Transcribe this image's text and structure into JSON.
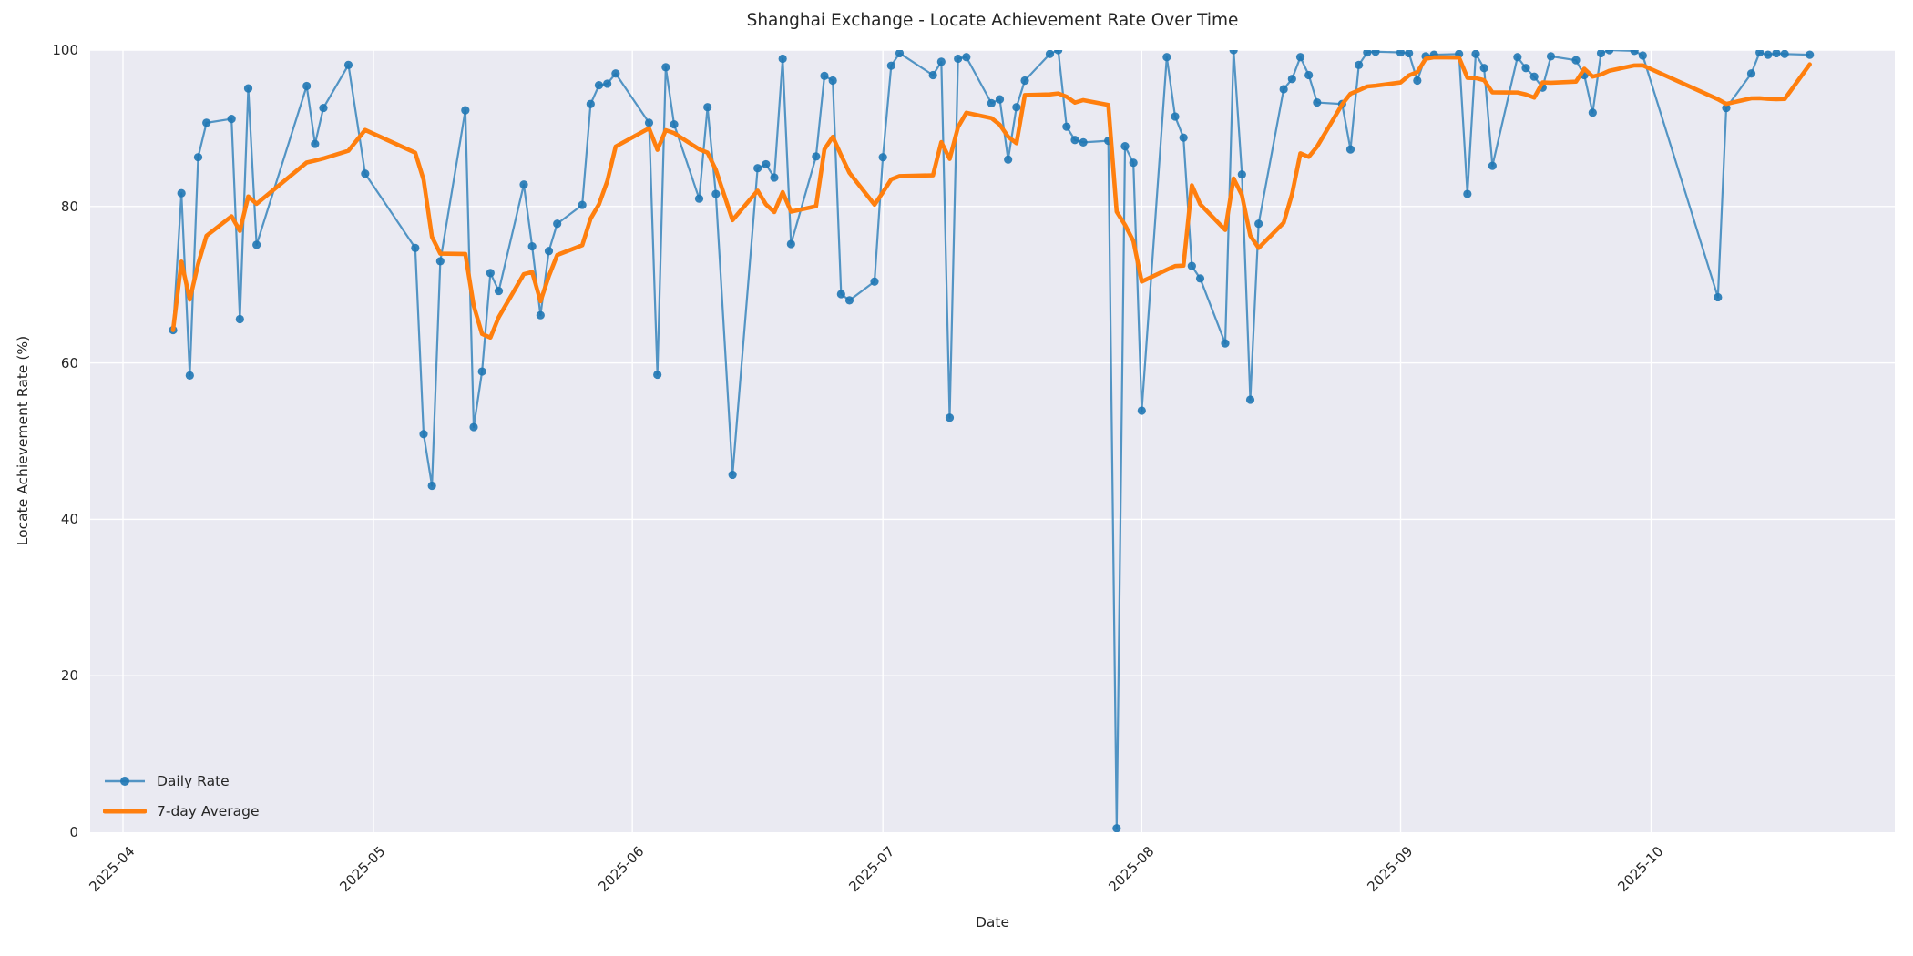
{
  "chart_data": {
    "type": "line",
    "title": "Shanghai Exchange - Locate Achievement Rate Over Time",
    "xlabel": "Date",
    "ylabel": "Locate Achievement Rate (%)",
    "ylim": [
      0,
      100
    ],
    "yticks": [
      0,
      20,
      40,
      60,
      80,
      100
    ],
    "xticks": [
      "2025-04",
      "2025-05",
      "2025-06",
      "2025-07",
      "2025-08",
      "2025-09",
      "2025-10"
    ],
    "grid": true,
    "legend_position": "lower left",
    "plot_background": "#eaeaf2",
    "grid_color": "#ffffff",
    "text_color": "#262626",
    "series": [
      {
        "name": "Daily Rate",
        "color": "#1f77b4",
        "line_alpha": 0.75,
        "line_width": 2.2,
        "marker": "o",
        "marker_radius": 4.6,
        "dates": [
          "2025-04-07",
          "2025-04-08",
          "2025-04-09",
          "2025-04-10",
          "2025-04-11",
          "2025-04-14",
          "2025-04-15",
          "2025-04-16",
          "2025-04-17",
          "2025-04-23",
          "2025-04-24",
          "2025-04-25",
          "2025-04-28",
          "2025-04-30",
          "2025-05-06",
          "2025-05-07",
          "2025-05-08",
          "2025-05-09",
          "2025-05-12",
          "2025-05-13",
          "2025-05-14",
          "2025-05-15",
          "2025-05-16",
          "2025-05-19",
          "2025-05-20",
          "2025-05-21",
          "2025-05-22",
          "2025-05-23",
          "2025-05-26",
          "2025-05-27",
          "2025-05-28",
          "2025-05-29",
          "2025-05-30",
          "2025-06-03",
          "2025-06-04",
          "2025-06-05",
          "2025-06-06",
          "2025-06-09",
          "2025-06-10",
          "2025-06-11",
          "2025-06-13",
          "2025-06-16",
          "2025-06-17",
          "2025-06-18",
          "2025-06-19",
          "2025-06-20",
          "2025-06-23",
          "2025-06-24",
          "2025-06-25",
          "2025-06-26",
          "2025-06-27",
          "2025-06-30",
          "2025-07-01",
          "2025-07-02",
          "2025-07-03",
          "2025-07-07",
          "2025-07-08",
          "2025-07-09",
          "2025-07-10",
          "2025-07-11",
          "2025-07-14",
          "2025-07-15",
          "2025-07-16",
          "2025-07-17",
          "2025-07-18",
          "2025-07-21",
          "2025-07-22",
          "2025-07-23",
          "2025-07-24",
          "2025-07-25",
          "2025-07-28",
          "2025-07-29",
          "2025-07-30",
          "2025-07-31",
          "2025-08-01",
          "2025-08-04",
          "2025-08-05",
          "2025-08-06",
          "2025-08-07",
          "2025-08-08",
          "2025-08-11",
          "2025-08-12",
          "2025-08-13",
          "2025-08-14",
          "2025-08-15",
          "2025-08-18",
          "2025-08-19",
          "2025-08-20",
          "2025-08-21",
          "2025-08-22",
          "2025-08-25",
          "2025-08-26",
          "2025-08-27",
          "2025-08-28",
          "2025-08-29",
          "2025-09-01",
          "2025-09-02",
          "2025-09-03",
          "2025-09-04",
          "2025-09-05",
          "2025-09-08",
          "2025-09-09",
          "2025-09-10",
          "2025-09-11",
          "2025-09-12",
          "2025-09-15",
          "2025-09-16",
          "2025-09-17",
          "2025-09-18",
          "2025-09-19",
          "2025-09-22",
          "2025-09-23",
          "2025-09-24",
          "2025-09-25",
          "2025-09-26",
          "2025-09-29",
          "2025-09-30",
          "2025-10-09",
          "2025-10-10",
          "2025-10-13",
          "2025-10-14",
          "2025-10-15",
          "2025-10-16",
          "2025-10-17",
          "2025-10-20"
        ],
        "values": [
          64.2,
          81.7,
          58.4,
          86.3,
          90.7,
          91.2,
          65.6,
          95.1,
          75.1,
          95.4,
          88.0,
          92.6,
          98.1,
          84.2,
          74.7,
          50.9,
          44.3,
          73.0,
          92.3,
          51.8,
          58.9,
          71.5,
          69.2,
          82.8,
          74.9,
          66.1,
          74.3,
          77.8,
          80.2,
          93.1,
          95.5,
          95.7,
          97.0,
          90.7,
          58.5,
          97.8,
          90.5,
          81.0,
          92.7,
          81.6,
          45.7,
          84.9,
          85.4,
          83.7,
          98.9,
          75.2,
          86.4,
          96.7,
          96.1,
          68.8,
          68.0,
          70.4,
          86.3,
          98.0,
          99.6,
          96.8,
          98.5,
          53.0,
          98.9,
          99.1,
          93.2,
          93.7,
          86.0,
          92.7,
          96.1,
          99.5,
          100.0,
          90.2,
          88.5,
          88.2,
          88.4,
          0.5,
          87.7,
          85.6,
          53.9,
          99.1,
          91.5,
          88.8,
          72.4,
          70.8,
          62.5,
          100.0,
          84.1,
          55.3,
          77.8,
          95.0,
          96.3,
          99.1,
          96.8,
          93.3,
          93.1,
          87.3,
          98.1,
          99.7,
          99.8,
          99.7,
          99.6,
          96.1,
          99.2,
          99.4,
          99.5,
          81.6,
          99.5,
          97.7,
          85.2,
          99.1,
          97.7,
          96.6,
          95.2,
          99.2,
          98.7,
          96.8,
          92.0,
          99.6,
          100.0,
          99.9,
          99.3,
          68.4,
          92.6,
          97.0,
          99.7,
          99.4,
          99.6,
          99.5,
          99.4
        ]
      },
      {
        "name": "7-day Average",
        "color": "#ff7f0e",
        "line_width": 4.6,
        "marker": "none",
        "derived_from": "rolling mean over the last 7 data points of Daily Rate (min periods 1)"
      }
    ]
  },
  "legend": {
    "items": [
      {
        "label": "Daily Rate",
        "color": "#1f77b4",
        "swatch": "line-with-dot"
      },
      {
        "label": "7-day Average",
        "color": "#ff7f0e",
        "swatch": "thick-line"
      }
    ]
  }
}
